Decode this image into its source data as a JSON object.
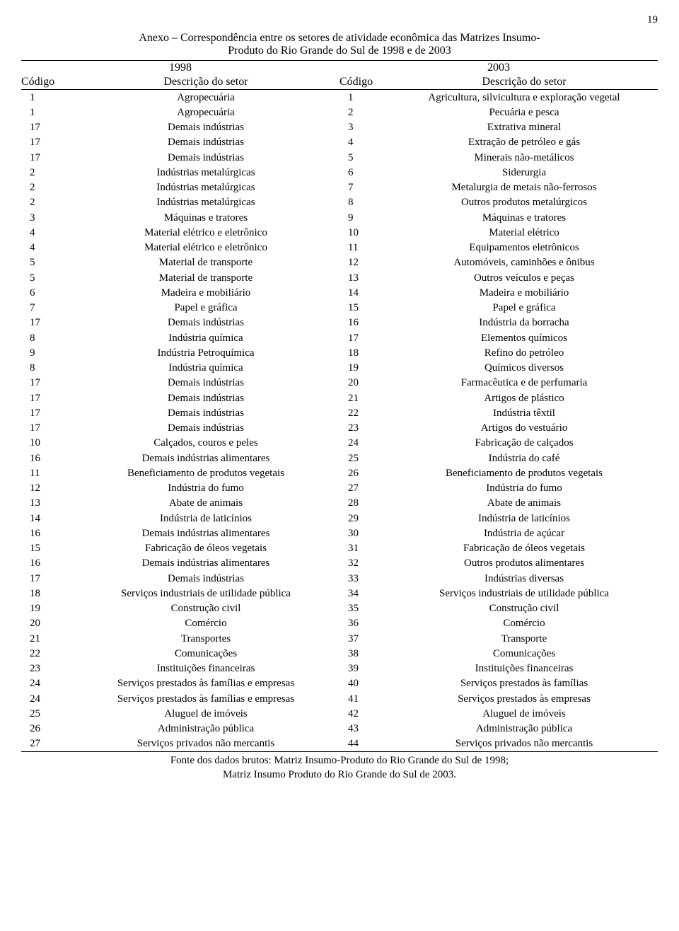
{
  "page_number": "19",
  "title_line1": "Anexo – Correspondência entre os setores de atividade econômica das Matrizes Insumo-",
  "title_line2": "Produto do Rio Grande do Sul de 1998 e de 2003",
  "year_left": "1998",
  "year_right": "2003",
  "hdr_code_left": "Código",
  "hdr_desc_left": "Descrição do setor",
  "hdr_code_right": "Código",
  "hdr_desc_right": "Descrição do setor",
  "rows": [
    {
      "c1": "1",
      "d1": "Agropecuária",
      "c2": "1",
      "d2": "Agricultura, silvicultura e exploração vegetal"
    },
    {
      "c1": "1",
      "d1": "Agropecuária",
      "c2": "2",
      "d2": "Pecuária e pesca"
    },
    {
      "c1": "17",
      "d1": "Demais indústrias",
      "c2": "3",
      "d2": "Extrativa mineral"
    },
    {
      "c1": "17",
      "d1": "Demais indústrias",
      "c2": "4",
      "d2": "Extração de petróleo e gás"
    },
    {
      "c1": "17",
      "d1": "Demais indústrias",
      "c2": "5",
      "d2": "Minerais não-metálicos"
    },
    {
      "c1": "2",
      "d1": "Indústrias metalúrgicas",
      "c2": "6",
      "d2": "Siderurgia"
    },
    {
      "c1": "2",
      "d1": "Indústrias metalúrgicas",
      "c2": "7",
      "d2": "Metalurgia de metais não-ferrosos"
    },
    {
      "c1": "2",
      "d1": "Indústrias metalúrgicas",
      "c2": "8",
      "d2": "Outros produtos metalúrgicos"
    },
    {
      "c1": "3",
      "d1": "Máquinas e tratores",
      "c2": "9",
      "d2": "Máquinas e tratores"
    },
    {
      "c1": "4",
      "d1": "Material elétrico e eletrônico",
      "c2": "10",
      "d2": "Material elétrico"
    },
    {
      "c1": "4",
      "d1": "Material elétrico e eletrônico",
      "c2": "11",
      "d2": "Equipamentos eletrônicos"
    },
    {
      "c1": "5",
      "d1": "Material de transporte",
      "c2": "12",
      "d2": "Automóveis, caminhões e ônibus"
    },
    {
      "c1": "5",
      "d1": "Material de transporte",
      "c2": "13",
      "d2": "Outros veículos e peças"
    },
    {
      "c1": "6",
      "d1": "Madeira e mobiliário",
      "c2": "14",
      "d2": "Madeira e mobiliário"
    },
    {
      "c1": "7",
      "d1": "Papel e gráfica",
      "c2": "15",
      "d2": "Papel e gráfica"
    },
    {
      "c1": "17",
      "d1": "Demais indústrias",
      "c2": "16",
      "d2": "Indústria da borracha"
    },
    {
      "c1": "8",
      "d1": "Indústria química",
      "c2": "17",
      "d2": "Elementos químicos"
    },
    {
      "c1": "9",
      "d1": "Indústria Petroquímica",
      "c2": "18",
      "d2": "Refino do petróleo"
    },
    {
      "c1": "8",
      "d1": "Indústria química",
      "c2": "19",
      "d2": "Químicos diversos"
    },
    {
      "c1": "17",
      "d1": "Demais indústrias",
      "c2": "20",
      "d2": "Farmacêutica e de perfumaria"
    },
    {
      "c1": "17",
      "d1": "Demais indústrias",
      "c2": "21",
      "d2": "Artigos de plástico"
    },
    {
      "c1": "17",
      "d1": "Demais indústrias",
      "c2": "22",
      "d2": "Indústria têxtil"
    },
    {
      "c1": "17",
      "d1": "Demais indústrias",
      "c2": "23",
      "d2": "Artigos do vestuário"
    },
    {
      "c1": "10",
      "d1": "Calçados, couros e peles",
      "c2": "24",
      "d2": "Fabricação de calçados"
    },
    {
      "c1": "16",
      "d1": "Demais indústrias alimentares",
      "c2": "25",
      "d2": "Indústria do café"
    },
    {
      "c1": "11",
      "d1": "Beneficiamento de produtos vegetais",
      "c2": "26",
      "d2": "Beneficiamento de produtos vegetais"
    },
    {
      "c1": "12",
      "d1": "Indústria do fumo",
      "c2": "27",
      "d2": "Indústria do fumo"
    },
    {
      "c1": "13",
      "d1": "Abate de animais",
      "c2": "28",
      "d2": "Abate de animais"
    },
    {
      "c1": "14",
      "d1": "Indústria de laticínios",
      "c2": "29",
      "d2": "Indústria de laticínios"
    },
    {
      "c1": "16",
      "d1": "Demais indústrias alimentares",
      "c2": "30",
      "d2": "Indústria de açúcar"
    },
    {
      "c1": "15",
      "d1": "Fabricação de óleos vegetais",
      "c2": "31",
      "d2": "Fabricação de óleos vegetais"
    },
    {
      "c1": "16",
      "d1": "Demais indústrias alimentares",
      "c2": "32",
      "d2": "Outros produtos alimentares"
    },
    {
      "c1": "17",
      "d1": "Demais indústrias",
      "c2": "33",
      "d2": "Indústrias diversas"
    },
    {
      "c1": "18",
      "d1": "Serviços industriais de utilidade pública",
      "c2": "34",
      "d2": "Serviços industriais de utilidade pública"
    },
    {
      "c1": "19",
      "d1": "Construção civil",
      "c2": "35",
      "d2": "Construção civil"
    },
    {
      "c1": "20",
      "d1": "Comércio",
      "c2": "36",
      "d2": "Comércio"
    },
    {
      "c1": "21",
      "d1": "Transportes",
      "c2": "37",
      "d2": "Transporte"
    },
    {
      "c1": "22",
      "d1": "Comunicações",
      "c2": "38",
      "d2": "Comunicações"
    },
    {
      "c1": "23",
      "d1": "Instituições financeiras",
      "c2": "39",
      "d2": "Instituições financeiras"
    },
    {
      "c1": "24",
      "d1": "Serviços prestados às famílias e empresas",
      "c2": "40",
      "d2": "Serviços prestados às famílias"
    },
    {
      "c1": "24",
      "d1": "Serviços prestados às famílias e empresas",
      "c2": "41",
      "d2": "Serviços prestados às empresas"
    },
    {
      "c1": "25",
      "d1": "Aluguel de imóveis",
      "c2": "42",
      "d2": "Aluguel de imóveis"
    },
    {
      "c1": "26",
      "d1": "Administração pública",
      "c2": "43",
      "d2": "Administração pública"
    },
    {
      "c1": "27",
      "d1": "Serviços privados não mercantis",
      "c2": "44",
      "d2": "Serviços privados não mercantis"
    }
  ],
  "source_line1": "Fonte dos dados brutos: Matriz Insumo-Produto do Rio Grande do Sul de 1998;",
  "source_line2": "Matriz Insumo Produto do Rio Grande do Sul de 2003."
}
